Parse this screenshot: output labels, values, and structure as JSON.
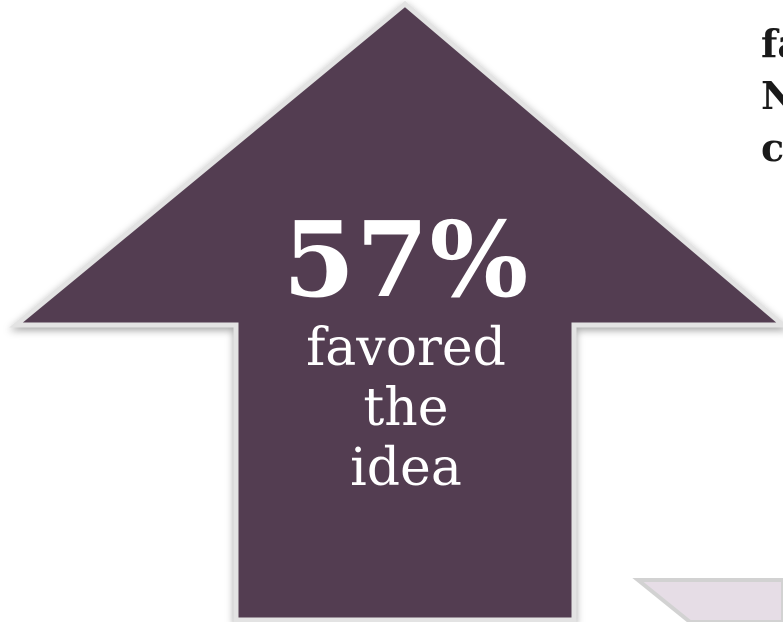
{
  "arrow": {
    "percent": "57%",
    "caption_lines": [
      "favored",
      "the",
      "idea"
    ],
    "fill_color": "#533e51",
    "stroke_color": "#e3e3e3"
  },
  "side_text": {
    "lines": [
      "fa",
      "N",
      "c"
    ]
  },
  "corner_shape": {
    "fill_color": "#e6dde6",
    "stroke_color": "#d2d2d2"
  }
}
